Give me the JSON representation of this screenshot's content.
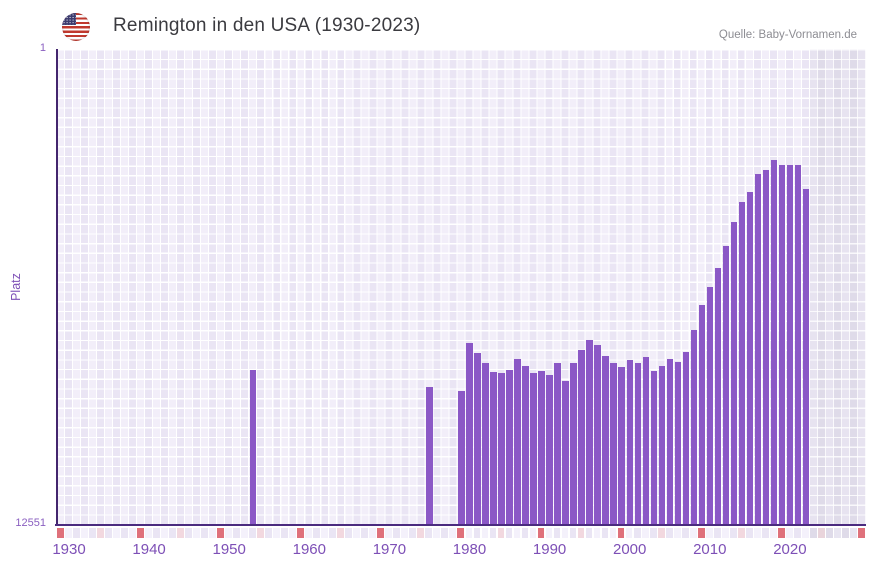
{
  "header": {
    "title": "Remington in den USA (1930-2023)",
    "source": "Quelle: Baby-Vornamen.de",
    "flag_icon": "us-flag"
  },
  "axes": {
    "y_label": "Platz",
    "y_top_tick": "1",
    "y_bottom_tick": "12551"
  },
  "colors": {
    "bar": "#8b58c6",
    "axis_line": "#4b2b7f",
    "tick_text": "#7d4fb6",
    "title_text": "#3b3b40",
    "source_text": "#8d8d93",
    "plot_bg": "#eae5f4",
    "plot_bg_alt": "#f2eef9",
    "future_band_bg": "#dfdbe9",
    "marker_decade": "#df717b",
    "marker_half_decade": "#f2d8df",
    "marker_half_decade_future": "#e9d4db",
    "strip_cell_a": "#eae5f4",
    "strip_cell_b": "#f4f1fb",
    "strip_cell_future_a": "#dfdbe9",
    "strip_cell_future_b": "#e8e5f1"
  },
  "chart_data": {
    "type": "bar",
    "title": "Remington in den USA (1930-2023)",
    "xlabel": "",
    "ylabel": "Platz",
    "y_scale": "log",
    "y_axis_top_rank": 1,
    "y_axis_bottom_rank": 12551,
    "x_domain": [
      1930,
      2030
    ],
    "x_ticks": [
      "1930",
      "1940",
      "1950",
      "1960",
      "1970",
      "1980",
      "1990",
      "2000",
      "2010",
      "2020"
    ],
    "future_band_start": 2024,
    "legend": "none",
    "grid": "on",
    "series": [
      {
        "name": "Remington",
        "points": [
          [
            1954,
            589
          ],
          [
            1976,
            825
          ],
          [
            1980,
            894
          ],
          [
            1981,
            344
          ],
          [
            1982,
            420
          ],
          [
            1983,
            512
          ],
          [
            1984,
            613
          ],
          [
            1985,
            625
          ],
          [
            1986,
            589
          ],
          [
            1987,
            473
          ],
          [
            1988,
            544
          ],
          [
            1989,
            625
          ],
          [
            1990,
            601
          ],
          [
            1991,
            650
          ],
          [
            1992,
            512
          ],
          [
            1993,
            733
          ],
          [
            1994,
            512
          ],
          [
            1995,
            396
          ],
          [
            1996,
            324
          ],
          [
            1997,
            358
          ],
          [
            1998,
            446
          ],
          [
            1999,
            512
          ],
          [
            2000,
            555
          ],
          [
            2001,
            483
          ],
          [
            2002,
            512
          ],
          [
            2003,
            455
          ],
          [
            2004,
            601
          ],
          [
            2005,
            544
          ],
          [
            2006,
            473
          ],
          [
            2007,
            502
          ],
          [
            2008,
            412
          ],
          [
            2009,
            266
          ],
          [
            2010,
            162
          ],
          [
            2011,
            113
          ],
          [
            2012,
            78
          ],
          [
            2013,
            50
          ],
          [
            2014,
            31
          ],
          [
            2015,
            21
          ],
          [
            2016,
            17
          ],
          [
            2017,
            12
          ],
          [
            2018,
            11
          ],
          [
            2019,
            9
          ],
          [
            2020,
            10
          ],
          [
            2021,
            10
          ],
          [
            2022,
            10
          ],
          [
            2023,
            16
          ]
        ]
      }
    ]
  }
}
